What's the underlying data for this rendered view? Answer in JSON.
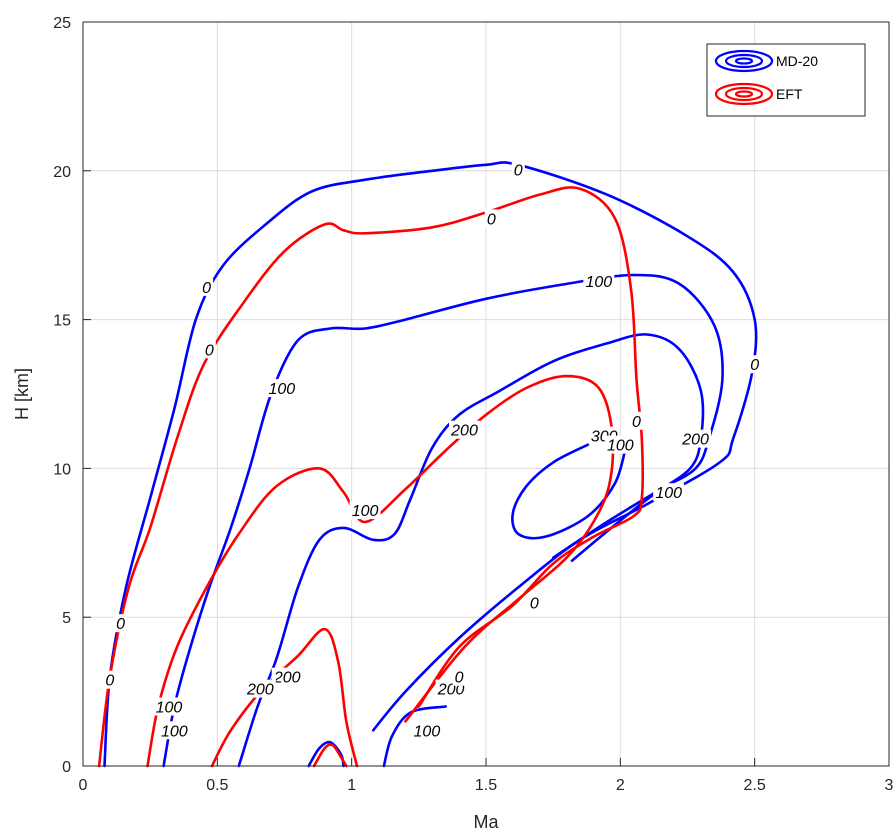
{
  "chart_data": {
    "type": "contour",
    "xlabel": "Ma",
    "ylabel": "H [km]",
    "xlim": [
      0,
      3
    ],
    "ylim": [
      0,
      25
    ],
    "xticks": [
      "0",
      "0.5",
      "1",
      "1.5",
      "2",
      "2.5",
      "3"
    ],
    "yticks": [
      "0",
      "5",
      "10",
      "15",
      "20",
      "25"
    ],
    "grid": true,
    "legend_position": "top-right",
    "colors": {
      "MD-20": "#0000ff",
      "EFT": "#ff0000"
    },
    "series": [
      {
        "name": "MD-20",
        "color": "#0000ff",
        "contours": [
          {
            "level": "0",
            "points": [
              [
                0.08,
                0
              ],
              [
                0.1,
                3
              ],
              [
                0.16,
                6
              ],
              [
                0.25,
                9
              ],
              [
                0.34,
                12
              ],
              [
                0.42,
                15
              ],
              [
                0.52,
                16.8
              ],
              [
                0.68,
                18.2
              ],
              [
                0.85,
                19.3
              ],
              [
                1.05,
                19.7
              ],
              [
                1.3,
                20
              ],
              [
                1.5,
                20.2
              ],
              [
                1.62,
                20.2
              ],
              [
                1.95,
                19.2
              ],
              [
                2.25,
                17.8
              ],
              [
                2.42,
                16.6
              ],
              [
                2.5,
                15
              ],
              [
                2.49,
                13.2
              ],
              [
                2.42,
                11
              ],
              [
                2.37,
                10.2
              ],
              [
                2.1,
                8.8
              ],
              [
                1.85,
                7.6
              ],
              [
                1.62,
                6
              ],
              [
                1.4,
                4.3
              ],
              [
                1.2,
                2.5
              ],
              [
                1.08,
                1.2
              ]
            ]
          },
          {
            "level": "100",
            "points": [
              [
                0.3,
                0
              ],
              [
                0.34,
                2
              ],
              [
                0.4,
                4
              ],
              [
                0.47,
                6
              ],
              [
                0.55,
                8
              ],
              [
                0.62,
                10
              ],
              [
                0.7,
                12.5
              ],
              [
                0.8,
                14.3
              ],
              [
                0.92,
                14.7
              ],
              [
                1.05,
                14.7
              ],
              [
                1.2,
                15
              ],
              [
                1.5,
                15.7
              ],
              [
                1.8,
                16.2
              ],
              [
                2.05,
                16.5
              ],
              [
                2.22,
                16.2
              ],
              [
                2.35,
                14.8
              ],
              [
                2.38,
                13
              ],
              [
                2.33,
                11
              ],
              [
                2.28,
                10
              ],
              [
                2.15,
                9.3
              ],
              [
                1.95,
                8.2
              ],
              [
                1.75,
                7
              ]
            ]
          },
          {
            "level": "200",
            "points": [
              [
                0.58,
                0
              ],
              [
                0.65,
                2
              ],
              [
                0.72,
                3.6
              ],
              [
                0.8,
                6
              ],
              [
                0.88,
                7.6
              ],
              [
                0.97,
                8
              ],
              [
                1.08,
                7.6
              ],
              [
                1.16,
                7.8
              ],
              [
                1.22,
                9
              ],
              [
                1.3,
                10.7
              ],
              [
                1.4,
                11.8
              ],
              [
                1.55,
                12.6
              ],
              [
                1.75,
                13.6
              ],
              [
                1.95,
                14.2
              ],
              [
                2.1,
                14.5
              ],
              [
                2.22,
                14
              ],
              [
                2.3,
                12.6
              ],
              [
                2.3,
                11
              ],
              [
                2.26,
                10
              ],
              [
                2.12,
                9.1
              ],
              [
                1.98,
                8.1
              ],
              [
                1.82,
                6.9
              ]
            ]
          },
          {
            "level": "300",
            "points": [
              [
                1.88,
                10.8
              ],
              [
                1.75,
                10.2
              ],
              [
                1.65,
                9.4
              ],
              [
                1.6,
                8.5
              ],
              [
                1.62,
                7.8
              ],
              [
                1.72,
                7.7
              ],
              [
                1.88,
                8.4
              ],
              [
                1.98,
                9.5
              ],
              [
                2.02,
                10.7
              ]
            ]
          },
          {
            "level": "0",
            "points": [
              [
                0.84,
                0
              ],
              [
                0.88,
                0.6
              ],
              [
                0.92,
                0.8
              ],
              [
                0.96,
                0.4
              ],
              [
                0.97,
                0
              ]
            ]
          },
          {
            "level": "100",
            "points": [
              [
                1.12,
                0
              ],
              [
                1.15,
                1
              ],
              [
                1.22,
                1.8
              ],
              [
                1.35,
                2
              ]
            ]
          }
        ]
      },
      {
        "name": "EFT",
        "color": "#ff0000",
        "contours": [
          {
            "level": "0",
            "points": [
              [
                0.06,
                0
              ],
              [
                0.1,
                3
              ],
              [
                0.17,
                6
              ],
              [
                0.25,
                8
              ],
              [
                0.35,
                11
              ],
              [
                0.45,
                13.5
              ],
              [
                0.6,
                15.6
              ],
              [
                0.75,
                17.3
              ],
              [
                0.9,
                18.2
              ],
              [
                0.97,
                18
              ],
              [
                1.05,
                17.9
              ],
              [
                1.3,
                18.1
              ],
              [
                1.5,
                18.6
              ],
              [
                1.7,
                19.2
              ],
              [
                1.85,
                19.4
              ],
              [
                1.98,
                18.4
              ],
              [
                2.04,
                16
              ],
              [
                2.06,
                13
              ],
              [
                2.08,
                11
              ],
              [
                2.08,
                9
              ],
              [
                2.05,
                8.4
              ],
              [
                1.9,
                7.7
              ],
              [
                1.75,
                6.8
              ],
              [
                1.6,
                5.4
              ],
              [
                1.4,
                4
              ],
              [
                1.25,
                2
              ]
            ]
          },
          {
            "level": "100",
            "points": [
              [
                0.24,
                0
              ],
              [
                0.28,
                2
              ],
              [
                0.35,
                4
              ],
              [
                0.46,
                6
              ],
              [
                0.58,
                7.8
              ],
              [
                0.72,
                9.4
              ],
              [
                0.88,
                10
              ],
              [
                0.97,
                9.2
              ],
              [
                1.05,
                8.2
              ],
              [
                1.2,
                9.3
              ],
              [
                1.35,
                10.6
              ],
              [
                1.5,
                11.8
              ],
              [
                1.65,
                12.7
              ],
              [
                1.8,
                13.1
              ],
              [
                1.92,
                12.7
              ],
              [
                1.97,
                11.2
              ],
              [
                1.96,
                9.5
              ],
              [
                1.9,
                8.2
              ],
              [
                1.8,
                7
              ],
              [
                1.62,
                5.6
              ],
              [
                1.42,
                4
              ],
              [
                1.2,
                1.5
              ]
            ]
          },
          {
            "level": "200",
            "points": [
              [
                0.48,
                0
              ],
              [
                0.55,
                1.2
              ],
              [
                0.67,
                2.6
              ],
              [
                0.8,
                3.7
              ],
              [
                0.9,
                4.6
              ],
              [
                0.95,
                3.5
              ],
              [
                0.98,
                1.5
              ],
              [
                1.02,
                0
              ]
            ]
          },
          {
            "level": "0",
            "points": [
              [
                0.86,
                0
              ],
              [
                0.9,
                0.6
              ],
              [
                0.93,
                0.7
              ],
              [
                0.96,
                0.3
              ],
              [
                0.98,
                0
              ]
            ]
          }
        ]
      }
    ],
    "contour_labels": [
      {
        "text": "0",
        "x": 1.62,
        "y": 20.05,
        "series": "MD-20"
      },
      {
        "text": "0",
        "x": 0.46,
        "y": 16.1,
        "series": "MD-20"
      },
      {
        "text": "0",
        "x": 2.5,
        "y": 13.5,
        "series": "MD-20"
      },
      {
        "text": "0",
        "x": 0.14,
        "y": 4.8,
        "series": "MD-20"
      },
      {
        "text": "100",
        "x": 1.92,
        "y": 16.3,
        "series": "MD-20"
      },
      {
        "text": "100",
        "x": 0.74,
        "y": 12.7,
        "series": "MD-20"
      },
      {
        "text": "100",
        "x": 2.18,
        "y": 9.2,
        "series": "MD-20"
      },
      {
        "text": "100",
        "x": 0.34,
        "y": 1.2,
        "series": "MD-20"
      },
      {
        "text": "200",
        "x": 1.42,
        "y": 11.3,
        "series": "MD-20"
      },
      {
        "text": "200",
        "x": 2.28,
        "y": 11,
        "series": "MD-20"
      },
      {
        "text": "200",
        "x": 0.76,
        "y": 3,
        "series": "MD-20"
      },
      {
        "text": "300",
        "x": 1.94,
        "y": 11.1,
        "series": "MD-20"
      },
      {
        "text": "0",
        "x": 1.52,
        "y": 18.4,
        "series": "EFT"
      },
      {
        "text": "0",
        "x": 0.47,
        "y": 14.0,
        "series": "EFT"
      },
      {
        "text": "0",
        "x": 2.06,
        "y": 11.6,
        "series": "EFT"
      },
      {
        "text": "0",
        "x": 0.1,
        "y": 2.9,
        "series": "EFT"
      },
      {
        "text": "0",
        "x": 1.68,
        "y": 5.5,
        "series": "EFT"
      },
      {
        "text": "100",
        "x": 1.05,
        "y": 8.6,
        "series": "EFT"
      },
      {
        "text": "100",
        "x": 2.0,
        "y": 10.8,
        "series": "EFT"
      },
      {
        "text": "100",
        "x": 0.32,
        "y": 2.0,
        "series": "EFT"
      },
      {
        "text": "200",
        "x": 0.66,
        "y": 2.6,
        "series": "EFT"
      },
      {
        "text": "100",
        "x": 1.28,
        "y": 1.2,
        "series": "EFT"
      },
      {
        "text": "200",
        "x": 1.37,
        "y": 2.6,
        "series": "EFT"
      },
      {
        "text": "0",
        "x": 1.4,
        "y": 3.0,
        "series": "EFT"
      }
    ]
  },
  "legend": {
    "items": [
      {
        "label": "MD-20",
        "color": "#0000ff"
      },
      {
        "label": "EFT",
        "color": "#ff0000"
      }
    ]
  }
}
